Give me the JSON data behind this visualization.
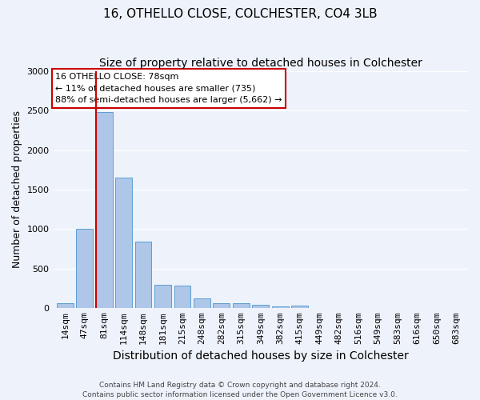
{
  "title": "16, OTHELLO CLOSE, COLCHESTER, CO4 3LB",
  "subtitle": "Size of property relative to detached houses in Colchester",
  "xlabel": "Distribution of detached houses by size in Colchester",
  "ylabel": "Number of detached properties",
  "footer_line1": "Contains HM Land Registry data © Crown copyright and database right 2024.",
  "footer_line2": "Contains public sector information licensed under the Open Government Licence v3.0.",
  "categories": [
    "14sqm",
    "47sqm",
    "81sqm",
    "114sqm",
    "148sqm",
    "181sqm",
    "215sqm",
    "248sqm",
    "282sqm",
    "315sqm",
    "349sqm",
    "382sqm",
    "415sqm",
    "449sqm",
    "482sqm",
    "516sqm",
    "549sqm",
    "583sqm",
    "616sqm",
    "650sqm",
    "683sqm"
  ],
  "values": [
    55,
    1000,
    2480,
    1650,
    840,
    290,
    280,
    120,
    55,
    55,
    35,
    20,
    30,
    0,
    0,
    0,
    0,
    0,
    0,
    0,
    0
  ],
  "bar_color": "#aec6e8",
  "bar_edge_color": "#5a9fd4",
  "red_line_bar_index": 2,
  "red_line_color": "#cc0000",
  "ylim": [
    0,
    3000
  ],
  "yticks": [
    0,
    500,
    1000,
    1500,
    2000,
    2500,
    3000
  ],
  "annotation_line1": "16 OTHELLO CLOSE: 78sqm",
  "annotation_line2": "← 11% of detached houses are smaller (735)",
  "annotation_line3": "88% of semi-detached houses are larger (5,662) →",
  "annotation_box_color": "#ffffff",
  "annotation_box_edge_color": "#cc0000",
  "bg_color": "#eef2fb",
  "grid_color": "#ffffff",
  "title_fontsize": 11,
  "subtitle_fontsize": 10,
  "xlabel_fontsize": 10,
  "ylabel_fontsize": 9,
  "tick_fontsize": 8,
  "annotation_fontsize": 8,
  "footer_fontsize": 6.5
}
